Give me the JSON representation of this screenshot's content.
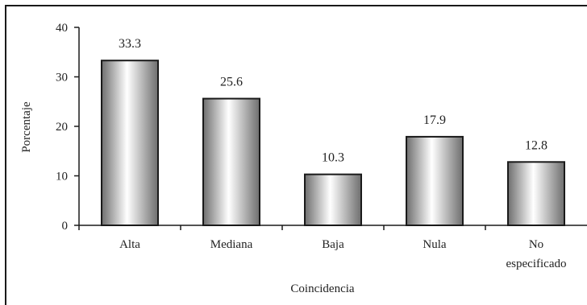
{
  "chart_data": {
    "type": "bar",
    "categories": [
      "Alta",
      "Mediana",
      "Baja",
      "Nula",
      "No especificado"
    ],
    "category_lines": [
      [
        "Alta"
      ],
      [
        "Mediana"
      ],
      [
        "Baja"
      ],
      [
        "Nula"
      ],
      [
        "No",
        "especificado"
      ]
    ],
    "values": [
      33.3,
      25.6,
      10.3,
      17.9,
      12.8
    ],
    "data_labels": [
      "33.3",
      "25.6",
      "10.3",
      "17.9",
      "12.8"
    ],
    "title": "",
    "xlabel": "Coincidencia",
    "ylabel": "Porcentaje",
    "ylim": [
      0,
      40
    ],
    "yticks": [
      0,
      10,
      20,
      30,
      40
    ],
    "grid": false,
    "legend": "none",
    "bar_colors": {
      "edge": "#1a1a1a",
      "dark": "#6e6e6e",
      "light": "#ffffff"
    }
  }
}
